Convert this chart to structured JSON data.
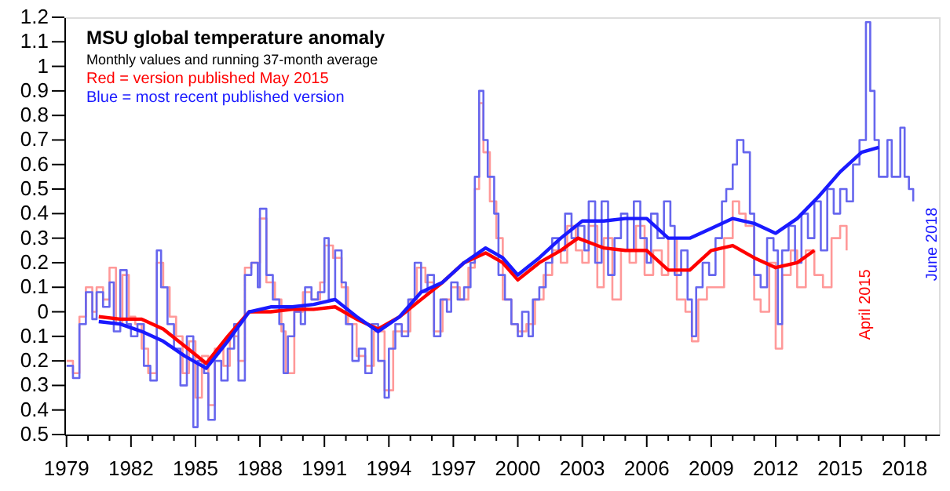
{
  "chart_data": {
    "type": "line",
    "title": "MSU global temperature anomaly",
    "subtitle": "Monthly values and running 37-month average",
    "xlim": [
      1978.9,
      2019.6
    ],
    "xticks": [
      1979,
      {
        "value": 1980,
        "label": null
      },
      {
        "value": 1981,
        "label": null
      },
      1982,
      {
        "value": 1983,
        "label": null
      },
      {
        "value": 1984,
        "label": null
      },
      1985,
      {
        "value": 1986,
        "label": null
      },
      {
        "value": 1987,
        "label": null
      },
      1988,
      {
        "value": 1989,
        "label": null
      },
      {
        "value": 1990,
        "label": null
      },
      1991,
      {
        "value": 1992,
        "label": null
      },
      {
        "value": 1993,
        "label": null
      },
      1994,
      {
        "value": 1995,
        "label": null
      },
      {
        "value": 1996,
        "label": null
      },
      1997,
      {
        "value": 1998,
        "label": null
      },
      {
        "value": 1999,
        "label": null
      },
      2000,
      {
        "value": 2001,
        "label": null
      },
      {
        "value": 2002,
        "label": null
      },
      2003,
      {
        "value": 2004,
        "label": null
      },
      {
        "value": 2005,
        "label": null
      },
      2006,
      {
        "value": 2007,
        "label": null
      },
      {
        "value": 2008,
        "label": null
      },
      2009,
      {
        "value": 2010,
        "label": null
      },
      {
        "value": 2011,
        "label": null
      },
      2012,
      {
        "value": 2013,
        "label": null
      },
      {
        "value": 2014,
        "label": null
      },
      2015,
      {
        "value": 2016,
        "label": null
      },
      {
        "value": 2017,
        "label": null
      },
      2018,
      {
        "value": 2019,
        "label": null
      }
    ],
    "ylim": [
      -0.5,
      1.2
    ],
    "yticks": [
      {
        "value": -0.5,
        "label": "0.5"
      },
      {
        "value": -0.4,
        "label": "0.4"
      },
      {
        "value": -0.3,
        "label": "0.3"
      },
      {
        "value": -0.2,
        "label": "0.2"
      },
      {
        "value": -0.1,
        "label": "0.1"
      },
      0,
      0.1,
      0.2,
      0.3,
      0.4,
      0.5,
      0.6,
      0.7,
      0.8,
      0.9,
      1,
      1.1,
      1.2
    ],
    "grid": false,
    "legend": "top left",
    "marker": "none",
    "line_style": "solid",
    "annotations": [
      "April 2015",
      "June 2018"
    ],
    "series": [
      {
        "type": "step",
        "color": "#ff9999",
        "x": [
          1979.0,
          1979.3,
          1979.6,
          1979.9,
          1980.2,
          1980.4,
          1980.7,
          1981.0,
          1981.3,
          1981.6,
          1981.9,
          1982.2,
          1982.5,
          1982.8,
          1983.2,
          1983.5,
          1983.8,
          1984.1,
          1984.4,
          1984.7,
          1985.0,
          1985.3,
          1985.6,
          1985.9,
          1986.3,
          1986.6,
          1987.0,
          1987.3,
          1987.6,
          1988.0,
          1988.3,
          1988.7,
          1989.0,
          1989.2,
          1989.6,
          1990.0,
          1990.4,
          1990.8,
          1991.0,
          1991.4,
          1991.8,
          1992.1,
          1992.5,
          1992.9,
          1993.3,
          1993.8,
          1994.2,
          1994.6,
          1995.0,
          1995.3,
          1995.7,
          1996.1,
          1996.5,
          1996.9,
          1997.3,
          1997.7,
          1998.0,
          1998.2,
          1998.4,
          1998.7,
          1999.0,
          1999.3,
          1999.7,
          2000.0,
          2000.4,
          2000.8,
          2001.2,
          2001.6,
          2002.0,
          2002.3,
          2002.7,
          2003.0,
          2003.3,
          2003.7,
          2004.0,
          2004.4,
          2004.8,
          2005.2,
          2005.5,
          2005.9,
          2006.3,
          2006.7,
          2007.0,
          2007.4,
          2007.8,
          2008.1,
          2008.4,
          2008.8,
          2009.2,
          2009.6,
          2010.0,
          2010.3,
          2010.6,
          2011.0,
          2011.3,
          2011.7,
          2012.0,
          2012.3,
          2012.7,
          2013.0,
          2013.4,
          2013.8,
          2014.2,
          2014.6,
          2015.0,
          2015.3
        ],
        "values": [
          -0.2,
          -0.25,
          -0.02,
          0.1,
          0.0,
          0.1,
          0.05,
          0.18,
          -0.05,
          0.15,
          -0.02,
          -0.05,
          -0.15,
          -0.25,
          0.2,
          0.1,
          -0.02,
          -0.1,
          -0.25,
          -0.12,
          -0.35,
          -0.18,
          -0.38,
          -0.15,
          -0.22,
          -0.1,
          -0.2,
          0.18,
          0.2,
          0.38,
          0.12,
          0.05,
          -0.08,
          -0.25,
          0.0,
          0.08,
          0.05,
          0.12,
          0.27,
          0.22,
          0.1,
          -0.05,
          -0.18,
          -0.22,
          -0.08,
          -0.32,
          -0.08,
          -0.08,
          0.05,
          0.18,
          0.12,
          -0.08,
          0.05,
          0.1,
          0.05,
          0.18,
          0.5,
          0.85,
          0.65,
          0.45,
          0.3,
          0.05,
          -0.05,
          -0.08,
          -0.05,
          0.05,
          0.15,
          0.25,
          0.2,
          0.35,
          0.25,
          0.2,
          0.35,
          0.1,
          0.3,
          0.05,
          0.25,
          0.2,
          0.35,
          0.15,
          0.25,
          0.15,
          0.3,
          0.05,
          0.0,
          -0.12,
          0.05,
          0.1,
          0.1,
          0.3,
          0.45,
          0.4,
          0.35,
          0.05,
          0.0,
          0.2,
          -0.15,
          0.15,
          0.25,
          0.1,
          0.25,
          0.15,
          0.1,
          0.3,
          0.35,
          0.25
        ]
      },
      {
        "type": "step",
        "color": "#6666ee",
        "x": [
          1979.0,
          1979.3,
          1979.6,
          1979.9,
          1980.2,
          1980.4,
          1980.7,
          1981.0,
          1981.2,
          1981.5,
          1981.8,
          1982.0,
          1982.3,
          1982.6,
          1982.9,
          1983.2,
          1983.4,
          1983.7,
          1984.0,
          1984.3,
          1984.6,
          1984.9,
          1985.1,
          1985.4,
          1985.6,
          1985.9,
          1986.2,
          1986.5,
          1986.8,
          1987.0,
          1987.3,
          1987.6,
          1987.9,
          1988.0,
          1988.3,
          1988.6,
          1988.9,
          1989.1,
          1989.3,
          1989.6,
          1989.9,
          1990.1,
          1990.4,
          1990.7,
          1991.0,
          1991.2,
          1991.5,
          1991.8,
          1992.0,
          1992.3,
          1992.6,
          1992.9,
          1993.2,
          1993.5,
          1993.8,
          1994.0,
          1994.3,
          1994.6,
          1994.9,
          1995.2,
          1995.5,
          1995.8,
          1996.1,
          1996.4,
          1996.7,
          1996.9,
          1997.2,
          1997.5,
          1997.8,
          1998.0,
          1998.2,
          1998.4,
          1998.6,
          1998.9,
          1999.1,
          1999.4,
          1999.7,
          2000.0,
          2000.2,
          2000.5,
          2000.7,
          2001.0,
          2001.3,
          2001.6,
          2001.9,
          2002.2,
          2002.5,
          2002.8,
          2003.1,
          2003.3,
          2003.6,
          2003.9,
          2004.2,
          2004.5,
          2004.8,
          2005.1,
          2005.4,
          2005.7,
          2006.0,
          2006.2,
          2006.5,
          2006.8,
          2007.1,
          2007.3,
          2007.6,
          2007.9,
          2008.1,
          2008.3,
          2008.6,
          2008.9,
          2009.2,
          2009.5,
          2009.7,
          2010.0,
          2010.2,
          2010.5,
          2010.8,
          2011.0,
          2011.3,
          2011.6,
          2011.9,
          2012.1,
          2012.3,
          2012.6,
          2012.9,
          2013.2,
          2013.5,
          2013.8,
          2014.1,
          2014.4,
          2014.7,
          2015.0,
          2015.3,
          2015.6,
          2015.9,
          2016.2,
          2016.4,
          2016.6,
          2016.8,
          2017.0,
          2017.2,
          2017.4,
          2017.6,
          2017.8,
          2018.0,
          2018.2,
          2018.4
        ],
        "values": [
          -0.22,
          -0.27,
          -0.05,
          0.08,
          -0.03,
          0.08,
          0.02,
          0.12,
          -0.08,
          0.17,
          -0.05,
          -0.1,
          -0.05,
          -0.22,
          -0.28,
          0.25,
          0.1,
          -0.05,
          -0.15,
          -0.3,
          -0.1,
          -0.47,
          -0.2,
          -0.25,
          -0.44,
          -0.2,
          -0.28,
          -0.15,
          -0.05,
          -0.28,
          0.15,
          0.2,
          0.1,
          0.42,
          0.15,
          0.05,
          -0.05,
          -0.25,
          -0.1,
          0.0,
          -0.05,
          0.1,
          0.05,
          0.08,
          0.3,
          0.05,
          0.25,
          0.12,
          -0.05,
          -0.2,
          -0.15,
          -0.25,
          -0.05,
          -0.2,
          -0.35,
          -0.15,
          -0.05,
          -0.1,
          0.05,
          0.2,
          0.08,
          0.15,
          -0.1,
          0.05,
          0.0,
          0.12,
          0.05,
          0.1,
          0.2,
          0.55,
          0.9,
          0.7,
          0.55,
          0.4,
          0.15,
          0.05,
          -0.05,
          -0.1,
          0.0,
          -0.1,
          0.05,
          0.1,
          0.2,
          0.3,
          0.25,
          0.4,
          0.3,
          0.35,
          0.25,
          0.45,
          0.2,
          0.45,
          0.15,
          0.3,
          0.4,
          0.25,
          0.45,
          0.3,
          0.2,
          0.4,
          0.3,
          0.45,
          0.35,
          0.15,
          0.25,
          0.05,
          -0.1,
          0.1,
          0.2,
          0.15,
          0.3,
          0.45,
          0.5,
          0.6,
          0.7,
          0.65,
          0.4,
          0.15,
          0.1,
          0.3,
          0.25,
          -0.05,
          0.25,
          0.35,
          0.2,
          0.4,
          0.3,
          0.45,
          0.25,
          0.5,
          0.4,
          0.5,
          0.45,
          0.6,
          0.7,
          1.18,
          0.9,
          0.7,
          0.55,
          0.55,
          0.7,
          0.55,
          0.55,
          0.75,
          0.55,
          0.5,
          0.45
        ]
      },
      {
        "name": "Red = version published May 2015",
        "color": "#ff0000",
        "x": [
          1980.5,
          1981.5,
          1982.5,
          1983.5,
          1984.5,
          1985.5,
          1986.5,
          1987.5,
          1988.5,
          1989.5,
          1990.5,
          1991.5,
          1992.5,
          1993.5,
          1994.5,
          1995.5,
          1996.5,
          1997.5,
          1998.5,
          1999.3,
          2000.0,
          2001.0,
          2002.0,
          2002.8,
          2004.0,
          2005.0,
          2006.0,
          2007.0,
          2008.0,
          2009.0,
          2010.0,
          2011.0,
          2012.0,
          2013.0,
          2013.8
        ],
        "values": [
          -0.02,
          -0.03,
          -0.03,
          -0.07,
          -0.14,
          -0.21,
          -0.1,
          0.0,
          0.0,
          0.01,
          0.01,
          0.02,
          -0.03,
          -0.07,
          -0.02,
          0.05,
          0.12,
          0.2,
          0.24,
          0.2,
          0.13,
          0.2,
          0.25,
          0.3,
          0.26,
          0.25,
          0.25,
          0.17,
          0.17,
          0.25,
          0.27,
          0.22,
          0.18,
          0.2,
          0.25
        ]
      },
      {
        "name": "Blue = most recent published version",
        "color": "#1a1aff",
        "x": [
          1980.5,
          1981.5,
          1982.5,
          1983.5,
          1984.5,
          1985.5,
          1986.5,
          1987.5,
          1988.5,
          1989.5,
          1990.5,
          1991.5,
          1992.5,
          1993.5,
          1994.5,
          1995.5,
          1996.5,
          1997.5,
          1998.5,
          1999.3,
          2000.0,
          2001.0,
          2002.0,
          2003.0,
          2004.0,
          2005.0,
          2006.0,
          2007.0,
          2008.0,
          2009.0,
          2010.0,
          2011.0,
          2012.0,
          2013.0,
          2014.0,
          2015.0,
          2016.0,
          2016.8
        ],
        "values": [
          -0.04,
          -0.05,
          -0.08,
          -0.12,
          -0.18,
          -0.23,
          -0.12,
          0.0,
          0.02,
          0.02,
          0.03,
          0.05,
          -0.02,
          -0.08,
          -0.02,
          0.08,
          0.12,
          0.2,
          0.26,
          0.22,
          0.15,
          0.22,
          0.3,
          0.37,
          0.37,
          0.38,
          0.38,
          0.3,
          0.3,
          0.34,
          0.38,
          0.36,
          0.32,
          0.38,
          0.47,
          0.57,
          0.65,
          0.67
        ]
      }
    ]
  }
}
